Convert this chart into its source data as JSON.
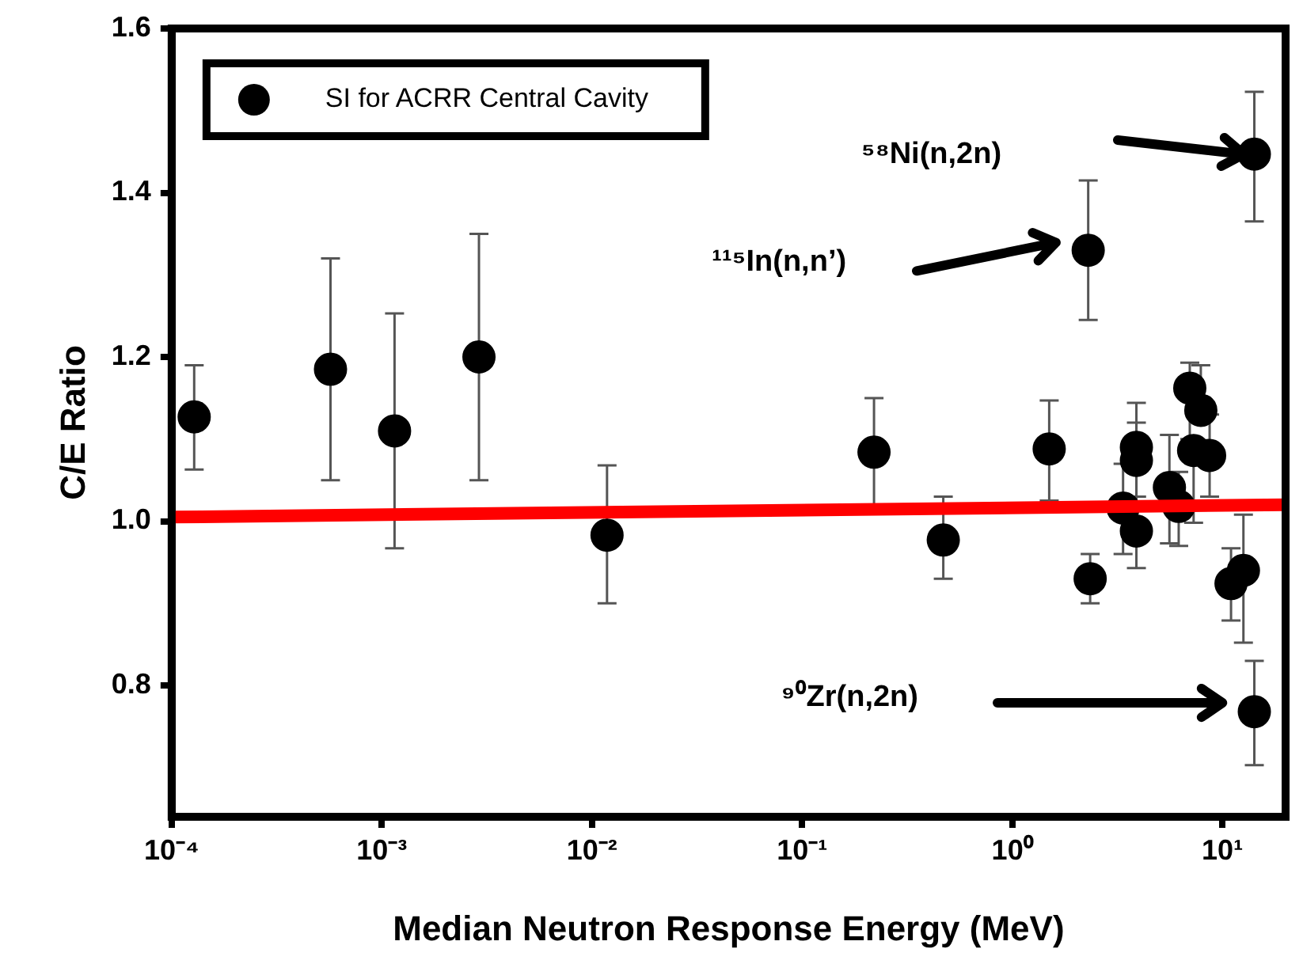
{
  "chart_data": {
    "type": "scatter",
    "xlabel": "Median Neutron Response Energy (MeV)",
    "ylabel": "C/E Ratio",
    "log": "x",
    "xlim": [
      0.0001,
      20
    ],
    "xticks": [
      {
        "value": 0.0001,
        "label": "10⁻⁴"
      },
      {
        "value": 0.001,
        "label": "10⁻³"
      },
      {
        "value": 0.01,
        "label": "10⁻²"
      },
      {
        "value": 0.1,
        "label": "10⁻¹"
      },
      {
        "value": 1,
        "label": "10⁰"
      },
      {
        "value": 10,
        "label": "10¹"
      }
    ],
    "ylim": [
      0.64,
      1.6
    ],
    "yticks": [
      0.8,
      {
        "value": 1,
        "label": "1.0"
      },
      1.2,
      1.4,
      1.6
    ],
    "grid": false,
    "legend": "top left",
    "marker": "circle",
    "series": [
      {
        "name": "SI for ACRR Central Cavity",
        "color": "#000000",
        "x": [
          0.000128,
          0.00057,
          0.00115,
          0.0029,
          0.0118,
          0.22,
          0.47,
          1.5,
          2.3,
          2.35,
          3.9,
          3.9,
          3.37,
          3.9,
          5.6,
          6.2,
          7.0,
          7.9,
          7.3,
          8.7,
          11,
          12.6,
          14.2,
          14.2
        ],
        "values": [
          1.127,
          1.185,
          1.11,
          1.2,
          0.983,
          1.084,
          0.977,
          1.088,
          1.33,
          0.93,
          1.09,
          1.074,
          1.016,
          0.988,
          1.041,
          1.018,
          1.162,
          1.135,
          1.086,
          1.08,
          0.924,
          0.94,
          0.768,
          1.447
        ],
        "errors": [
          [
            1.063,
            1.19
          ],
          [
            1.05,
            1.32
          ],
          [
            0.967,
            1.253
          ],
          [
            1.05,
            1.35
          ],
          [
            0.9,
            1.068
          ],
          [
            1.02,
            1.15
          ],
          [
            0.93,
            1.03
          ],
          [
            1.025,
            1.147
          ],
          [
            1.245,
            1.415
          ],
          [
            0.9,
            0.96
          ],
          [
            1.03,
            1.144
          ],
          [
            1.02,
            1.12
          ],
          [
            0.96,
            1.07
          ],
          [
            0.943,
            1.03
          ],
          [
            0.973,
            1.105
          ],
          [
            0.97,
            1.06
          ],
          [
            1.1,
            1.193
          ],
          [
            1.135,
            1.19
          ],
          [
            0.998,
            1.086
          ],
          [
            1.03,
            1.13
          ],
          [
            0.879,
            0.967
          ],
          [
            0.852,
            1.008
          ],
          [
            0.703,
            0.83
          ],
          [
            1.365,
            1.523
          ]
        ]
      },
      {
        "type": "line",
        "marker": "none",
        "color": "#ff0000",
        "x": [
          0.0001,
          20
        ],
        "values": [
          1.005,
          1.02
        ]
      }
    ],
    "annotations": [
      "⁵⁸Ni(n,2n)",
      "¹¹⁵In(n,n’)",
      "⁹⁰Zr(n,2n)"
    ]
  }
}
